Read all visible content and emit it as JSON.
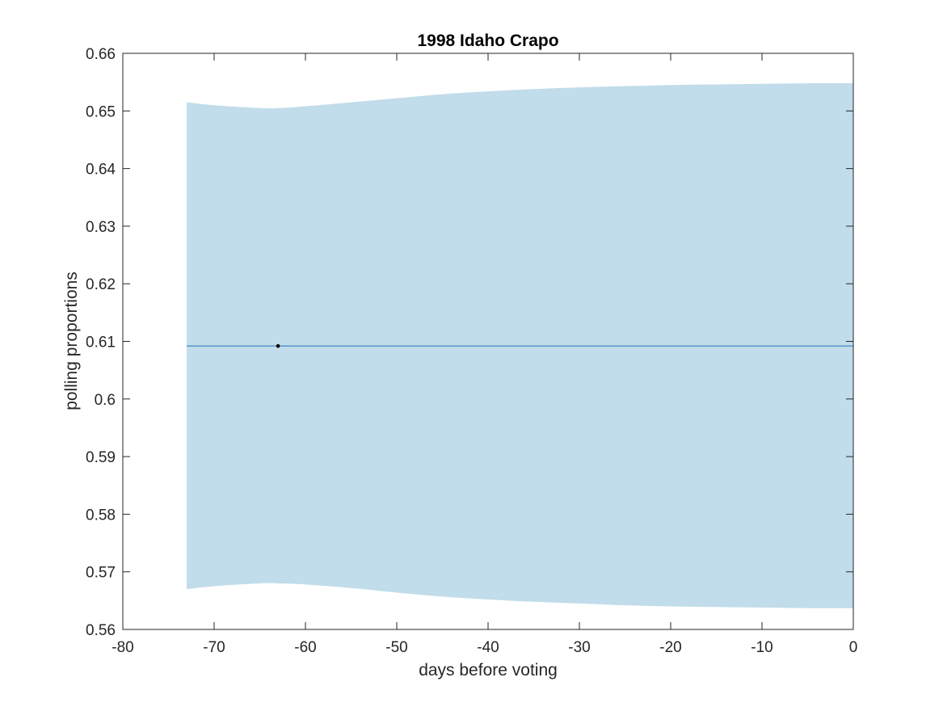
{
  "chart_data": {
    "type": "area",
    "title": "1998 Idaho Crapo",
    "xlabel": "days before voting",
    "ylabel": "polling proportions",
    "xlim": [
      -80,
      0
    ],
    "ylim": [
      0.56,
      0.66
    ],
    "x_ticks": [
      -80,
      -70,
      -60,
      -50,
      -40,
      -30,
      -20,
      -10,
      0
    ],
    "x_tick_labels": [
      "-80",
      "-70",
      "-60",
      "-50",
      "-40",
      "-30",
      "-20",
      "-10",
      "0"
    ],
    "y_ticks": [
      0.56,
      0.57,
      0.58,
      0.59,
      0.6,
      0.61,
      0.62,
      0.63,
      0.64,
      0.65,
      0.66
    ],
    "y_tick_labels": [
      "0.56",
      "0.57",
      "0.58",
      "0.59",
      "0.6",
      "0.61",
      "0.62",
      "0.63",
      "0.64",
      "0.65",
      "0.66"
    ],
    "grid": false,
    "band": {
      "x": [
        -73,
        -70,
        -65,
        -63,
        -60,
        -55,
        -50,
        -45,
        -40,
        -35,
        -30,
        -25,
        -20,
        -15,
        -10,
        -5,
        0
      ],
      "upper": [
        0.6515,
        0.651,
        0.6505,
        0.6505,
        0.6508,
        0.6515,
        0.6522,
        0.6529,
        0.6534,
        0.6538,
        0.6541,
        0.6543,
        0.6545,
        0.6546,
        0.6547,
        0.6548,
        0.6548
      ],
      "lower": [
        0.567,
        0.5675,
        0.568,
        0.568,
        0.5678,
        0.5672,
        0.5664,
        0.5657,
        0.5652,
        0.5648,
        0.5645,
        0.5642,
        0.564,
        0.5639,
        0.5638,
        0.5637,
        0.5637
      ],
      "color": "#c1dcea"
    },
    "mean_line": {
      "x": [
        -73,
        0
      ],
      "y": [
        0.6092,
        0.6092
      ],
      "color": "#3a7fc0"
    },
    "points": [
      {
        "x": -63,
        "y": 0.6092
      }
    ],
    "point_color": "#000000"
  }
}
